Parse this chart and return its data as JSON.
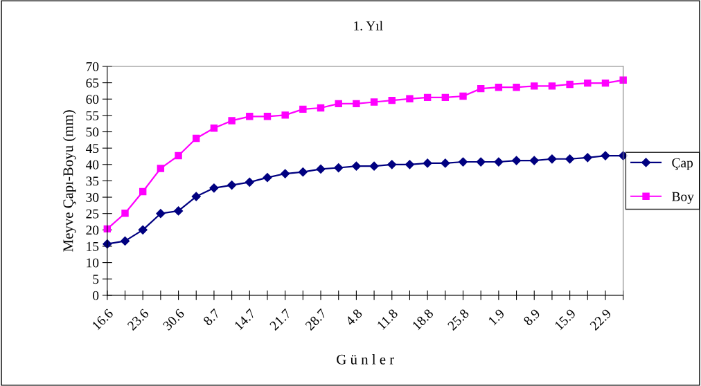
{
  "chart_data": {
    "type": "line",
    "title": "1. Yıl",
    "xlabel": "G ü n l e r",
    "ylabel": "Meyve Çapı-Boyu (mm)",
    "categories": [
      "16.6",
      null,
      "23.6",
      null,
      "30.6",
      null,
      "8.7",
      null,
      "14.7",
      null,
      "21.7",
      null,
      "28.7",
      null,
      "4.8",
      null,
      "11.8",
      null,
      "18.8",
      null,
      "25.8",
      null,
      "1.9",
      null,
      "8.9",
      null,
      "15.9",
      null,
      "22.9",
      null
    ],
    "series": [
      {
        "name": "Çap",
        "color": "#000080",
        "marker": "diamond",
        "values": [
          15.7,
          16.6,
          20,
          25,
          25.8,
          30.2,
          32.8,
          33.7,
          34.6,
          36,
          37.2,
          37.7,
          38.6,
          39,
          39.5,
          39.5,
          40,
          40,
          40.4,
          40.4,
          40.8,
          40.8,
          40.8,
          41.2,
          41.2,
          41.7,
          41.7,
          42.1,
          42.7,
          42.7
        ]
      },
      {
        "name": "Boy",
        "color": "#ff00ff",
        "marker": "square",
        "values": [
          20.3,
          25.1,
          31.7,
          38.8,
          42.7,
          48,
          51.1,
          53.4,
          54.7,
          54.7,
          55.1,
          56.9,
          57.3,
          58.6,
          58.6,
          59.1,
          59.6,
          60.1,
          60.5,
          60.5,
          60.9,
          63.2,
          63.6,
          63.6,
          64,
          64,
          64.5,
          64.9,
          64.9,
          65.8
        ]
      }
    ],
    "ylim": [
      0,
      70
    ],
    "yticks": [
      0,
      5,
      10,
      15,
      20,
      25,
      30,
      35,
      40,
      45,
      50,
      55,
      60,
      65,
      70
    ],
    "grid": false,
    "legend": "right",
    "line_style": "solid"
  }
}
